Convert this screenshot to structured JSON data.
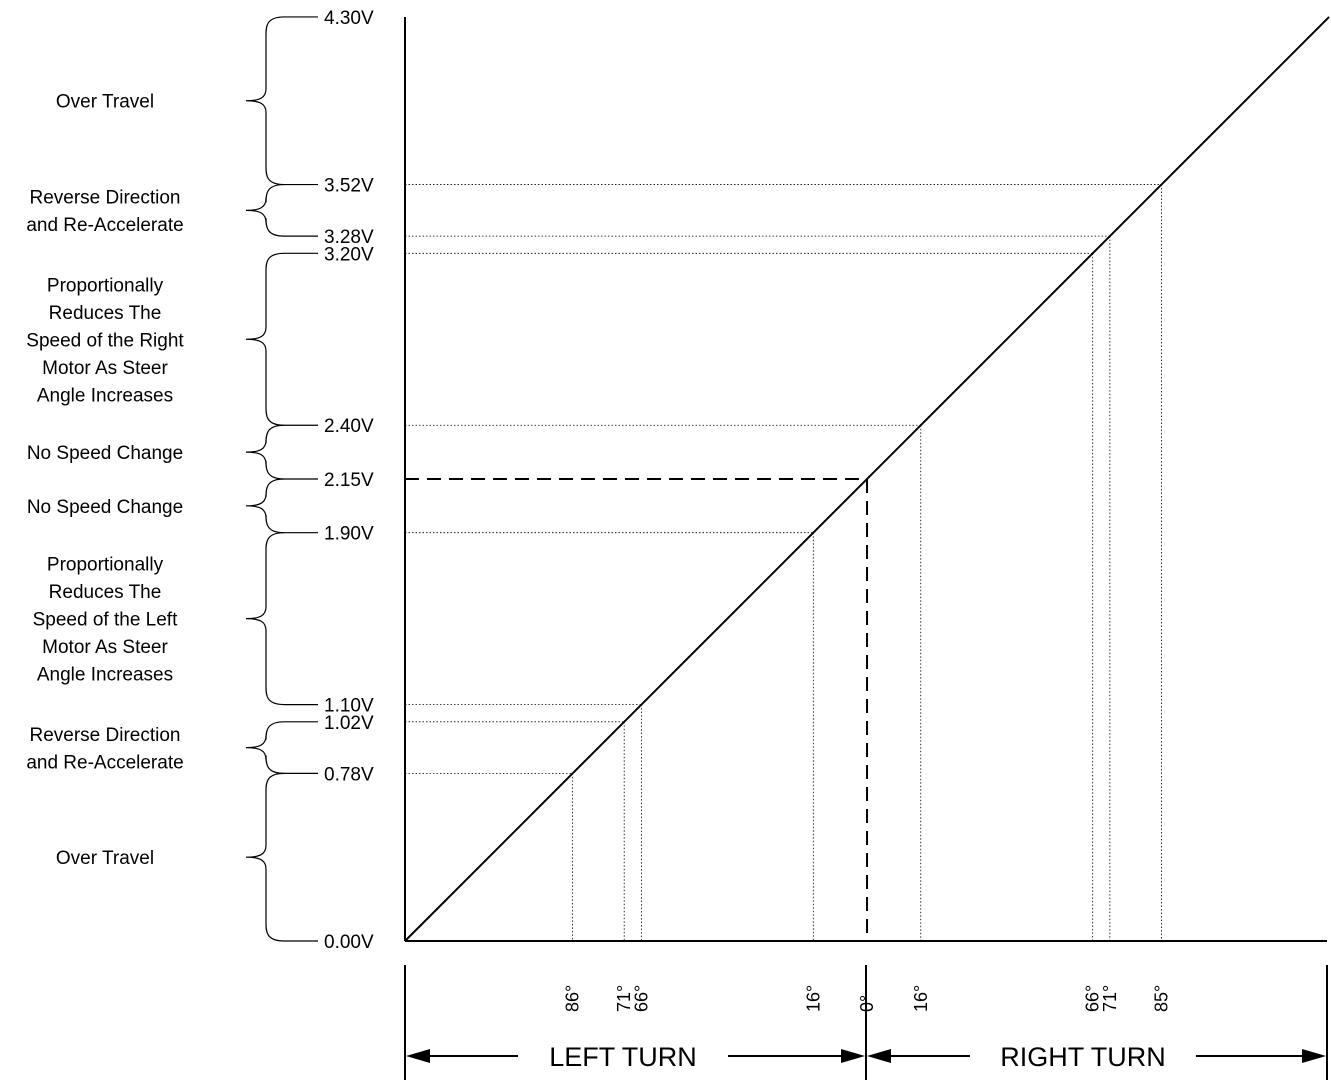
{
  "voltage_levels": [
    {
      "value": 4.3,
      "label": "4.30V"
    },
    {
      "value": 3.52,
      "label": "3.52V"
    },
    {
      "value": 3.28,
      "label": "3.28V"
    },
    {
      "value": 3.2,
      "label": "3.20V"
    },
    {
      "value": 2.4,
      "label": "2.40V"
    },
    {
      "value": 2.15,
      "label": "2.15V"
    },
    {
      "value": 1.9,
      "label": "1.90V"
    },
    {
      "value": 1.1,
      "label": "1.10V"
    },
    {
      "value": 1.02,
      "label": "1.02V"
    },
    {
      "value": 0.78,
      "label": "0.78V"
    },
    {
      "value": 0.0,
      "label": "0.00V"
    }
  ],
  "zones": [
    {
      "top": 4.3,
      "bottom": 3.52,
      "lines": [
        "Over Travel"
      ]
    },
    {
      "top": 3.52,
      "bottom": 3.28,
      "lines": [
        "Reverse Direction",
        "and Re-Accelerate"
      ]
    },
    {
      "top": 3.2,
      "bottom": 2.4,
      "lines": [
        "Proportionally",
        "Reduces The",
        "Speed of the Right",
        "Motor As Steer",
        "Angle Increases"
      ]
    },
    {
      "top": 2.4,
      "bottom": 2.15,
      "lines": [
        "No Speed Change"
      ]
    },
    {
      "top": 2.15,
      "bottom": 1.9,
      "lines": [
        "No Speed Change"
      ]
    },
    {
      "top": 1.9,
      "bottom": 1.1,
      "lines": [
        "Proportionally",
        "Reduces The",
        "Speed of the Left",
        "Motor As Steer",
        "Angle Increases"
      ]
    },
    {
      "top": 1.02,
      "bottom": 0.78,
      "lines": [
        "Reverse Direction",
        "and Re-Accelerate"
      ]
    },
    {
      "top": 0.78,
      "bottom": 0.0,
      "lines": [
        "Over Travel"
      ]
    }
  ],
  "angle_markers": [
    {
      "voltage": 0.78,
      "label": "86°"
    },
    {
      "voltage": 1.02,
      "label": "71°"
    },
    {
      "voltage": 1.1,
      "label": "66°"
    },
    {
      "voltage": 1.9,
      "label": "16°"
    },
    {
      "voltage": 2.15,
      "label": "0°"
    },
    {
      "voltage": 2.4,
      "label": "16°"
    },
    {
      "voltage": 3.2,
      "label": "66°"
    },
    {
      "voltage": 3.28,
      "label": "71°"
    },
    {
      "voltage": 3.52,
      "label": "85°"
    }
  ],
  "center_voltage": 2.15,
  "turns": {
    "left": "LEFT TURN",
    "right": "RIGHT TURN"
  }
}
